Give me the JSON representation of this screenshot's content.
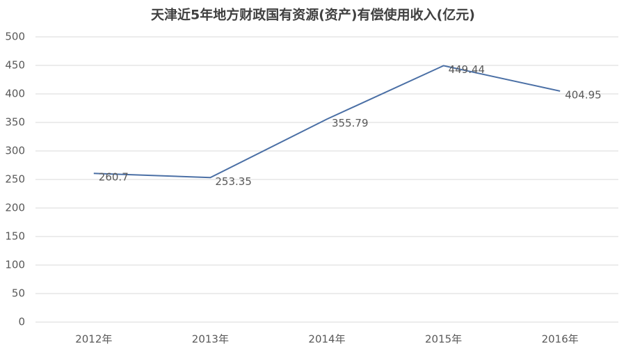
{
  "chart_data": {
    "type": "line",
    "title": "天津近5年地方财政国有资源(资产)有偿使用收入(亿元)",
    "categories": [
      "2012年",
      "2013年",
      "2014年",
      "2015年",
      "2016年"
    ],
    "values": [
      260.7,
      253.35,
      355.79,
      449.44,
      404.95
    ],
    "color": "#4a6fa5",
    "ylim": [
      0,
      500
    ],
    "yticks": [
      0,
      50,
      100,
      150,
      200,
      250,
      300,
      350,
      400,
      450,
      500
    ],
    "grid": true
  }
}
